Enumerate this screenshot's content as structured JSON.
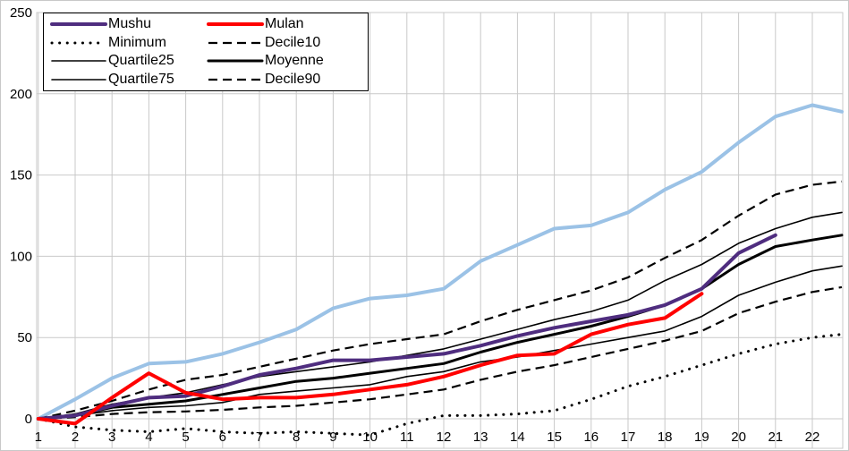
{
  "chart_data": {
    "type": "line",
    "title": "",
    "x_axis": {
      "ticks": [
        1,
        2,
        3,
        4,
        5,
        6,
        7,
        8,
        9,
        10,
        11,
        12,
        13,
        14,
        15,
        16,
        17,
        18,
        19,
        20,
        21,
        22
      ],
      "min": 1,
      "max": 22.8
    },
    "y_axis": {
      "ticks": [
        0,
        50,
        100,
        150,
        200,
        250
      ],
      "min": -18,
      "max": 250
    },
    "grid": true,
    "legend": {
      "position": "top-left",
      "columns": 2,
      "entries": [
        {
          "series": "mushu",
          "label": "Mushu"
        },
        {
          "series": "mulan",
          "label": "Mulan"
        },
        {
          "series": "minimum",
          "label": "Minimum"
        },
        {
          "series": "decile10",
          "label": "Decile10"
        },
        {
          "series": "quartile25",
          "label": "Quartile25"
        },
        {
          "series": "moyenne",
          "label": "Moyenne"
        },
        {
          "series": "quartile75",
          "label": "Quartile75"
        },
        {
          "series": "decile90",
          "label": "Decile90"
        }
      ]
    },
    "series": [
      {
        "id": "max",
        "label": "",
        "in_legend": false,
        "color": "#9BC2E6",
        "width": 4,
        "dash": "solid",
        "points": [
          [
            1,
            0
          ],
          [
            2,
            12
          ],
          [
            3,
            25
          ],
          [
            4,
            34
          ],
          [
            5,
            35
          ],
          [
            6,
            40
          ],
          [
            7,
            47
          ],
          [
            8,
            55
          ],
          [
            9,
            68
          ],
          [
            10,
            74
          ],
          [
            11,
            76
          ],
          [
            12,
            80
          ],
          [
            13,
            97
          ],
          [
            14,
            107
          ],
          [
            15,
            117
          ],
          [
            16,
            119
          ],
          [
            17,
            127
          ],
          [
            18,
            141
          ],
          [
            19,
            152
          ],
          [
            20,
            170
          ],
          [
            21,
            186
          ],
          [
            22,
            193
          ],
          [
            22.8,
            189
          ]
        ]
      },
      {
        "id": "decile90",
        "label": "Decile90",
        "in_legend": true,
        "color": "#000000",
        "width": 2.2,
        "dash": "dashed",
        "points": [
          [
            1,
            0
          ],
          [
            2,
            5
          ],
          [
            3,
            11
          ],
          [
            4,
            18
          ],
          [
            5,
            24
          ],
          [
            6,
            27
          ],
          [
            7,
            32
          ],
          [
            8,
            37
          ],
          [
            9,
            42
          ],
          [
            10,
            46
          ],
          [
            11,
            49
          ],
          [
            12,
            52
          ],
          [
            13,
            60
          ],
          [
            14,
            67
          ],
          [
            15,
            73
          ],
          [
            16,
            79
          ],
          [
            17,
            87
          ],
          [
            18,
            99
          ],
          [
            19,
            110
          ],
          [
            20,
            125
          ],
          [
            21,
            138
          ],
          [
            22,
            144
          ],
          [
            22.8,
            146
          ]
        ]
      },
      {
        "id": "quartile75",
        "label": "Quartile75",
        "in_legend": true,
        "color": "#000000",
        "width": 1.6,
        "dash": "solid",
        "points": [
          [
            1,
            0
          ],
          [
            2,
            3
          ],
          [
            3,
            9
          ],
          [
            4,
            13
          ],
          [
            5,
            16
          ],
          [
            6,
            21
          ],
          [
            7,
            26
          ],
          [
            8,
            29
          ],
          [
            9,
            32
          ],
          [
            10,
            35
          ],
          [
            11,
            39
          ],
          [
            12,
            43
          ],
          [
            13,
            49
          ],
          [
            14,
            55
          ],
          [
            15,
            61
          ],
          [
            16,
            66
          ],
          [
            17,
            73
          ],
          [
            18,
            85
          ],
          [
            19,
            95
          ],
          [
            20,
            108
          ],
          [
            21,
            117
          ],
          [
            22,
            124
          ],
          [
            22.8,
            127
          ]
        ]
      },
      {
        "id": "moyenne",
        "label": "Moyenne",
        "in_legend": true,
        "color": "#000000",
        "width": 3,
        "dash": "solid",
        "points": [
          [
            1,
            0
          ],
          [
            2,
            2
          ],
          [
            3,
            7
          ],
          [
            4,
            9
          ],
          [
            5,
            11
          ],
          [
            6,
            15
          ],
          [
            7,
            19
          ],
          [
            8,
            23
          ],
          [
            9,
            25
          ],
          [
            10,
            28
          ],
          [
            11,
            31
          ],
          [
            12,
            34
          ],
          [
            13,
            41
          ],
          [
            14,
            47
          ],
          [
            15,
            52
          ],
          [
            16,
            57
          ],
          [
            17,
            63
          ],
          [
            18,
            70
          ],
          [
            19,
            80
          ],
          [
            20,
            95
          ],
          [
            21,
            106
          ],
          [
            22,
            110
          ],
          [
            22.8,
            113
          ]
        ]
      },
      {
        "id": "quartile25",
        "label": "Quartile25",
        "in_legend": true,
        "color": "#000000",
        "width": 1.6,
        "dash": "solid",
        "points": [
          [
            1,
            0
          ],
          [
            2,
            2
          ],
          [
            3,
            5
          ],
          [
            4,
            7
          ],
          [
            5,
            8
          ],
          [
            6,
            10
          ],
          [
            7,
            15
          ],
          [
            8,
            17
          ],
          [
            9,
            19
          ],
          [
            10,
            21
          ],
          [
            11,
            26
          ],
          [
            12,
            29
          ],
          [
            13,
            35
          ],
          [
            14,
            38
          ],
          [
            15,
            42
          ],
          [
            16,
            46
          ],
          [
            17,
            50
          ],
          [
            18,
            54
          ],
          [
            19,
            63
          ],
          [
            20,
            76
          ],
          [
            21,
            84
          ],
          [
            22,
            91
          ],
          [
            22.8,
            94
          ]
        ]
      },
      {
        "id": "decile10",
        "label": "Decile10",
        "in_legend": true,
        "color": "#000000",
        "width": 2.2,
        "dash": "dashed",
        "points": [
          [
            1,
            0
          ],
          [
            2,
            1
          ],
          [
            3,
            3
          ],
          [
            4,
            4
          ],
          [
            5,
            4.5
          ],
          [
            6,
            5.5
          ],
          [
            7,
            7
          ],
          [
            8,
            8
          ],
          [
            9,
            10
          ],
          [
            10,
            12
          ],
          [
            11,
            15
          ],
          [
            12,
            18
          ],
          [
            13,
            24
          ],
          [
            14,
            29
          ],
          [
            15,
            33
          ],
          [
            16,
            38
          ],
          [
            17,
            43
          ],
          [
            18,
            48
          ],
          [
            19,
            54
          ],
          [
            20,
            65
          ],
          [
            21,
            72
          ],
          [
            22,
            78
          ],
          [
            22.8,
            81
          ]
        ]
      },
      {
        "id": "minimum",
        "label": "Minimum",
        "in_legend": true,
        "color": "#000000",
        "width": 3,
        "dash": "dotted",
        "points": [
          [
            1,
            0
          ],
          [
            2,
            -5
          ],
          [
            3,
            -7
          ],
          [
            4,
            -8
          ],
          [
            5,
            -6
          ],
          [
            6,
            -8
          ],
          [
            7,
            -9
          ],
          [
            8,
            -8
          ],
          [
            9,
            -9
          ],
          [
            10,
            -10
          ],
          [
            11,
            -3
          ],
          [
            12,
            2
          ],
          [
            13,
            2
          ],
          [
            14,
            3
          ],
          [
            15,
            5
          ],
          [
            16,
            12
          ],
          [
            17,
            20
          ],
          [
            18,
            26
          ],
          [
            19,
            33
          ],
          [
            20,
            40
          ],
          [
            21,
            46
          ],
          [
            22,
            50
          ],
          [
            22.8,
            52
          ]
        ]
      },
      {
        "id": "mushu",
        "label": "Mushu",
        "in_legend": true,
        "color": "#4F2D7F",
        "width": 4,
        "dash": "solid",
        "points": [
          [
            1,
            0
          ],
          [
            2,
            2
          ],
          [
            3,
            8
          ],
          [
            4,
            13
          ],
          [
            5,
            14
          ],
          [
            6,
            20
          ],
          [
            7,
            27
          ],
          [
            8,
            31
          ],
          [
            9,
            36
          ],
          [
            10,
            36
          ],
          [
            11,
            38
          ],
          [
            12,
            40
          ],
          [
            13,
            45
          ],
          [
            14,
            51
          ],
          [
            15,
            56
          ],
          [
            16,
            60
          ],
          [
            17,
            64
          ],
          [
            18,
            70
          ],
          [
            19,
            80
          ],
          [
            20,
            102
          ],
          [
            21,
            113
          ]
        ]
      },
      {
        "id": "mulan",
        "label": "Mulan",
        "in_legend": true,
        "color": "#FF0000",
        "width": 4,
        "dash": "solid",
        "points": [
          [
            1,
            0
          ],
          [
            2,
            -3
          ],
          [
            3,
            13
          ],
          [
            4,
            28
          ],
          [
            5,
            16
          ],
          [
            6,
            12
          ],
          [
            7,
            13
          ],
          [
            8,
            13
          ],
          [
            9,
            15
          ],
          [
            10,
            18
          ],
          [
            11,
            21
          ],
          [
            12,
            26
          ],
          [
            13,
            33
          ],
          [
            14,
            39
          ],
          [
            15,
            40
          ],
          [
            16,
            52
          ],
          [
            17,
            58
          ],
          [
            18,
            62
          ],
          [
            19,
            77
          ]
        ]
      }
    ]
  },
  "colors": {
    "background": "#FFFFFF",
    "grid": "#C9C9C9",
    "outer_border": "#C8C8C8",
    "text": "#000000",
    "legend_border": "#000000",
    "accent_purple": "#4F2D7F",
    "accent_red": "#FF0000",
    "accent_light_blue": "#9BC2E6"
  }
}
